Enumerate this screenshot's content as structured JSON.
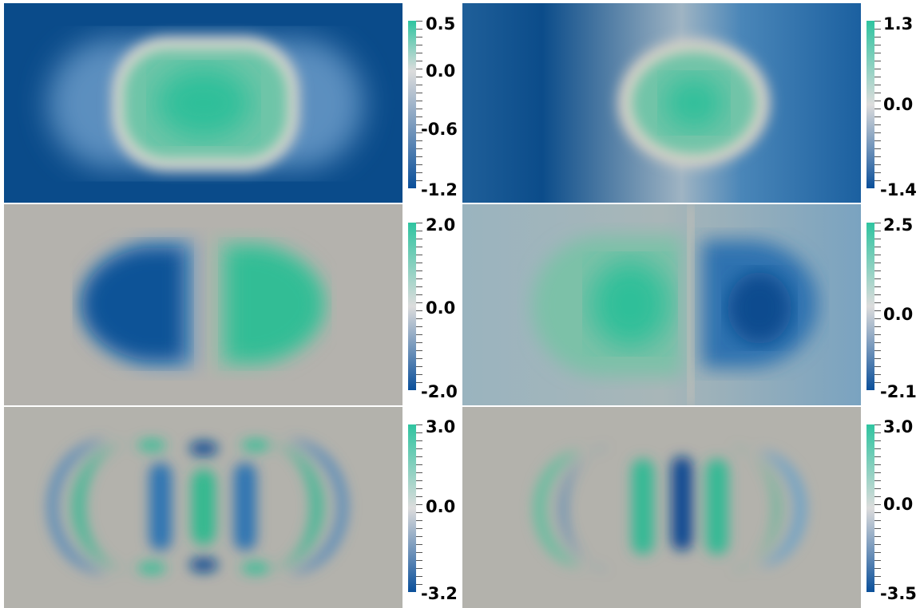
{
  "colormap": {
    "high": "#2fc4a0",
    "mid": "#d8d8d8",
    "low": "#0a4f9a"
  },
  "panels": [
    {
      "id": "r1c1",
      "labels": {
        "top": "0.5",
        "upper": "0.0",
        "lower": "-0.6",
        "bottom": "-1.2"
      }
    },
    {
      "id": "r1c2",
      "labels": {
        "top": "1.3",
        "upper": "0.0",
        "bottom": "-1.4"
      }
    },
    {
      "id": "r2c1",
      "labels": {
        "top": "2.0",
        "upper": "0.0",
        "bottom": "-2.0"
      }
    },
    {
      "id": "r2c2",
      "labels": {
        "top": "2.5",
        "upper": "0.0",
        "bottom": "-2.1"
      }
    },
    {
      "id": "r3c1",
      "labels": {
        "top": "3.0",
        "upper": "0.0",
        "bottom": "-3.2"
      }
    },
    {
      "id": "r3c2",
      "labels": {
        "top": "3.0",
        "upper": "0.0",
        "bottom": "-3.5"
      }
    }
  ]
}
